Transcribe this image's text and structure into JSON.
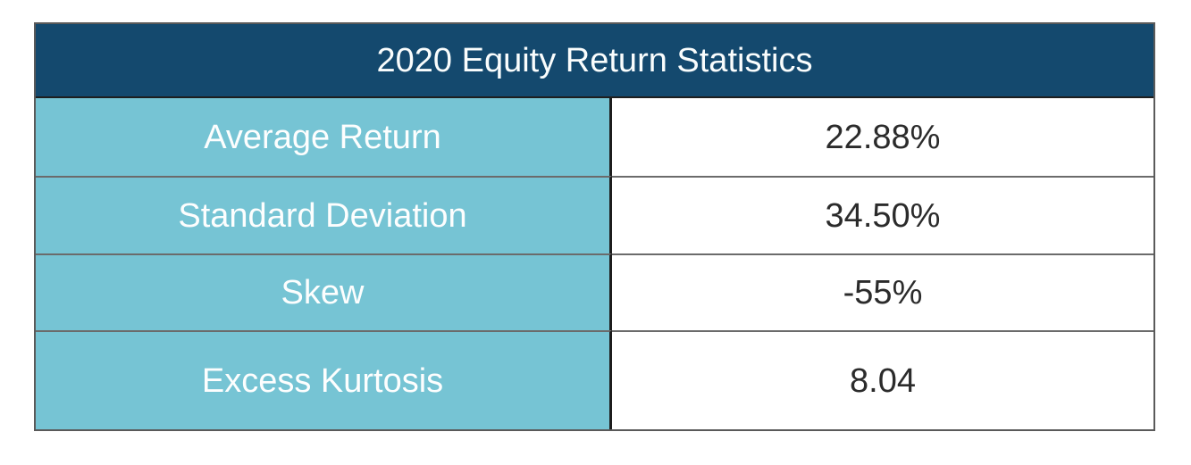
{
  "table": {
    "title": "2020 Equity Return Statistics",
    "rows": [
      {
        "label": "Average Return",
        "value": "22.88%"
      },
      {
        "label": "Standard Deviation",
        "value": "34.50%"
      },
      {
        "label": "Skew",
        "value": "-55%"
      },
      {
        "label": "Excess Kurtosis",
        "value": "8.04"
      }
    ]
  },
  "colors": {
    "header_bg": "#14496e",
    "header_text": "#fafdfd",
    "header_edge": "#1e1e1e",
    "label_bg": "#76c4d4",
    "label_text": "#fdfefe",
    "value_bg": "#ffffff",
    "value_text": "#2b2b2b",
    "border_outer": "#5a5a5a",
    "border_inner": "#6b6b6b",
    "border_divider": "#1c1c1c"
  },
  "chart_data": {
    "type": "table",
    "title": "2020 Equity Return Statistics",
    "categories": [
      "Average Return",
      "Standard Deviation",
      "Skew",
      "Excess Kurtosis"
    ],
    "values": [
      "22.88%",
      "34.50%",
      "-55%",
      "8.04"
    ],
    "numeric_values": [
      22.88,
      34.5,
      -55,
      8.04
    ],
    "layout": {
      "header_position": "top-spanning",
      "label_column": "left",
      "value_column": "right",
      "grid": "on"
    }
  }
}
